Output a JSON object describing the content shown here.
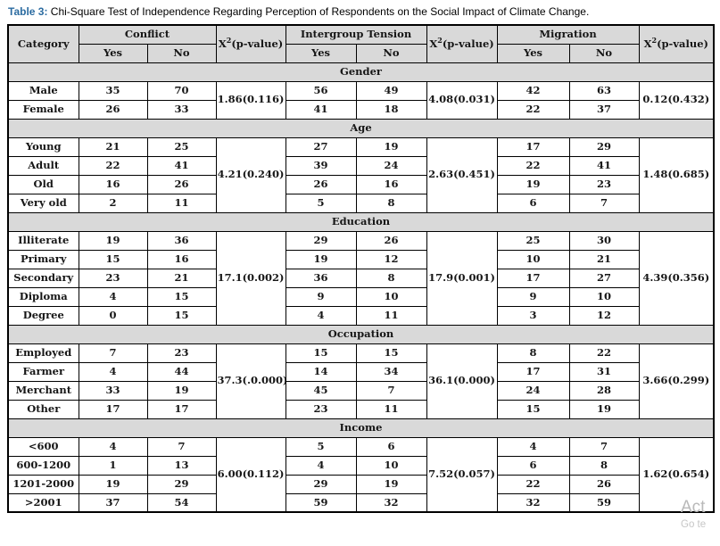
{
  "page": {
    "title_label": "Table 3:",
    "title_text": " Chi-Square Test of Independence Regarding Perception of Respondents on the Social Impact of Climate Change."
  },
  "table": {
    "headers": {
      "category": "Category",
      "yes": "Yes",
      "no": "No",
      "chi_base": "X",
      "chi_sup": "2",
      "chi_rest": "(p-value)",
      "groups": [
        "Conflict",
        "Intergroup Tension",
        "Migration"
      ]
    },
    "sections": [
      {
        "name": "Gender",
        "rows": [
          {
            "category": "Male",
            "values": [
              35,
              70,
              56,
              49,
              42,
              63
            ]
          },
          {
            "category": "Female",
            "values": [
              26,
              33,
              41,
              18,
              22,
              37
            ]
          }
        ],
        "chi": [
          "1.86(0.116)",
          "4.08(0.031)",
          "0.12(0.432)"
        ]
      },
      {
        "name": "Age",
        "rows": [
          {
            "category": "Young",
            "values": [
              21,
              25,
              27,
              19,
              17,
              29
            ]
          },
          {
            "category": "Adult",
            "values": [
              22,
              41,
              39,
              24,
              22,
              41
            ]
          },
          {
            "category": "Old",
            "values": [
              16,
              26,
              26,
              16,
              19,
              23
            ]
          },
          {
            "category": "Very old",
            "values": [
              2,
              11,
              5,
              8,
              6,
              7
            ]
          }
        ],
        "chi": [
          "4.21(0.240)",
          "2.63(0.451)",
          "1.48(0.685)"
        ]
      },
      {
        "name": "Education",
        "rows": [
          {
            "category": "Illiterate",
            "values": [
              19,
              36,
              29,
              26,
              25,
              30
            ]
          },
          {
            "category": "Primary",
            "values": [
              15,
              16,
              19,
              12,
              10,
              21
            ]
          },
          {
            "category": "Secondary",
            "values": [
              23,
              21,
              36,
              8,
              17,
              27
            ]
          },
          {
            "category": "Diploma",
            "values": [
              4,
              15,
              9,
              10,
              9,
              10
            ]
          },
          {
            "category": "Degree",
            "values": [
              0,
              15,
              4,
              11,
              3,
              12
            ]
          }
        ],
        "chi": [
          "17.1(0.002)",
          "17.9(0.001)",
          "4.39(0.356)"
        ]
      },
      {
        "name": "Occupation",
        "rows": [
          {
            "category": "Employed",
            "values": [
              7,
              23,
              15,
              15,
              8,
              22
            ]
          },
          {
            "category": "Farmer",
            "values": [
              4,
              44,
              14,
              34,
              17,
              31
            ]
          },
          {
            "category": "Merchant",
            "values": [
              33,
              19,
              45,
              7,
              24,
              28
            ]
          },
          {
            "category": "Other",
            "values": [
              17,
              17,
              23,
              11,
              15,
              19
            ]
          }
        ],
        "chi": [
          "37.3(.0.000)",
          "36.1(0.000)",
          "3.66(0.299)"
        ]
      },
      {
        "name": "Income",
        "rows": [
          {
            "category": "<600",
            "values": [
              4,
              7,
              5,
              6,
              4,
              7
            ]
          },
          {
            "category": "600-1200",
            "values": [
              1,
              13,
              4,
              10,
              6,
              8
            ]
          },
          {
            "category": "1201-2000",
            "values": [
              19,
              29,
              29,
              19,
              22,
              26
            ]
          },
          {
            "category": ">2001",
            "values": [
              37,
              54,
              59,
              32,
              32,
              59
            ]
          }
        ],
        "chi": [
          "6.00(0.112)",
          "7.52(0.057)",
          "1.62(0.654)"
        ]
      }
    ]
  },
  "watermark": {
    "line1": "Act",
    "line2": "Go te"
  },
  "colors": {
    "accent": "#2b6ba0",
    "header_bg": "#d9d9d9",
    "border": "#000000",
    "watermark": "#b9b9b9"
  }
}
